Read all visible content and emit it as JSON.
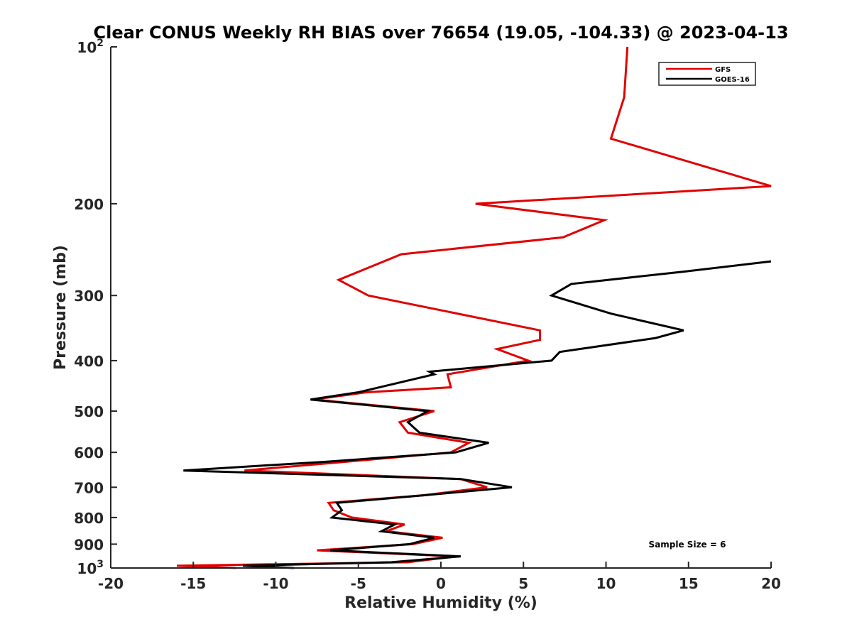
{
  "chart_data": {
    "type": "line",
    "title": "Clear CONUS Weekly RH BIAS over 76654 (19.05, -104.33) @ 2023-04-13",
    "xlabel": "Relative Humidity (%)",
    "ylabel": "Pressure (mb)",
    "xlim": [
      -20,
      20
    ],
    "ylim": [
      100,
      1000
    ],
    "yscale": "log",
    "y_reversed": true,
    "x_ticks": [
      -20,
      -15,
      -10,
      -5,
      0,
      5,
      10,
      15,
      20
    ],
    "x_tick_labels": [
      "-20",
      "-15",
      "-10",
      "-5",
      "0",
      "5",
      "10",
      "15",
      "20"
    ],
    "y_ticks": [
      100,
      200,
      300,
      400,
      500,
      600,
      700,
      800,
      900,
      1000
    ],
    "y_tick_labels": [
      {
        "base": "10",
        "exp": "2"
      },
      {
        "base": "200",
        "exp": ""
      },
      {
        "base": "300",
        "exp": ""
      },
      {
        "base": "400",
        "exp": ""
      },
      {
        "base": "500",
        "exp": ""
      },
      {
        "base": "600",
        "exp": ""
      },
      {
        "base": "700",
        "exp": ""
      },
      {
        "base": "800",
        "exp": ""
      },
      {
        "base": "900",
        "exp": ""
      },
      {
        "base": "10",
        "exp": "3"
      }
    ],
    "legend_position": "top-right",
    "annotation": "Sample Size = 6",
    "series": [
      {
        "name": "GFS",
        "color": "#e00000",
        "points": [
          [
            11.3,
            100
          ],
          [
            11.1,
            125
          ],
          [
            10.3,
            150
          ],
          [
            20.0,
            185
          ],
          [
            2.1,
            200
          ],
          [
            9.9,
            215
          ],
          [
            7.4,
            232
          ],
          [
            -2.4,
            250
          ],
          [
            -6.2,
            280
          ],
          [
            -4.4,
            300
          ],
          [
            6.0,
            350
          ],
          [
            6.0,
            365
          ],
          [
            3.4,
            380
          ],
          [
            5.3,
            400
          ],
          [
            0.4,
            425
          ],
          [
            0.6,
            450
          ],
          [
            -4.5,
            460
          ],
          [
            -7.7,
            475
          ],
          [
            -0.4,
            500
          ],
          [
            -2.5,
            525
          ],
          [
            -2.0,
            550
          ],
          [
            1.7,
            575
          ],
          [
            0.6,
            600
          ],
          [
            -5.7,
            625
          ],
          [
            -11.9,
            650
          ],
          [
            1.2,
            675
          ],
          [
            2.8,
            700
          ],
          [
            -1.0,
            725
          ],
          [
            -6.8,
            750
          ],
          [
            -6.5,
            775
          ],
          [
            -5.4,
            800
          ],
          [
            -2.2,
            825
          ],
          [
            -3.3,
            850
          ],
          [
            0.1,
            875
          ],
          [
            -1.7,
            900
          ],
          [
            -7.5,
            925
          ],
          [
            0.9,
            950
          ],
          [
            -2.0,
            975
          ],
          [
            -16.0,
            990
          ],
          [
            -12.4,
            1000
          ]
        ]
      },
      {
        "name": "GOES-16",
        "color": "#000000",
        "points": [
          [
            20.0,
            258
          ],
          [
            14.7,
            270
          ],
          [
            7.9,
            285
          ],
          [
            6.7,
            300
          ],
          [
            10.3,
            325
          ],
          [
            14.7,
            350
          ],
          [
            13.0,
            362
          ],
          [
            7.2,
            385
          ],
          [
            6.7,
            400
          ],
          [
            -0.7,
            420
          ],
          [
            -0.4,
            425
          ],
          [
            -5.0,
            460
          ],
          [
            -7.9,
            475
          ],
          [
            -0.8,
            500
          ],
          [
            -2.0,
            525
          ],
          [
            -1.3,
            550
          ],
          [
            2.9,
            575
          ],
          [
            0.9,
            600
          ],
          [
            -6.9,
            625
          ],
          [
            -15.6,
            650
          ],
          [
            1.2,
            675
          ],
          [
            4.3,
            700
          ],
          [
            -1.0,
            725
          ],
          [
            -6.3,
            750
          ],
          [
            -6.0,
            775
          ],
          [
            -6.6,
            800
          ],
          [
            -2.8,
            825
          ],
          [
            -3.6,
            850
          ],
          [
            -0.4,
            875
          ],
          [
            -1.9,
            900
          ],
          [
            -6.7,
            925
          ],
          [
            1.2,
            950
          ],
          [
            -3.0,
            975
          ],
          [
            -12.0,
            990
          ],
          [
            -8.9,
            1000
          ]
        ]
      }
    ]
  }
}
